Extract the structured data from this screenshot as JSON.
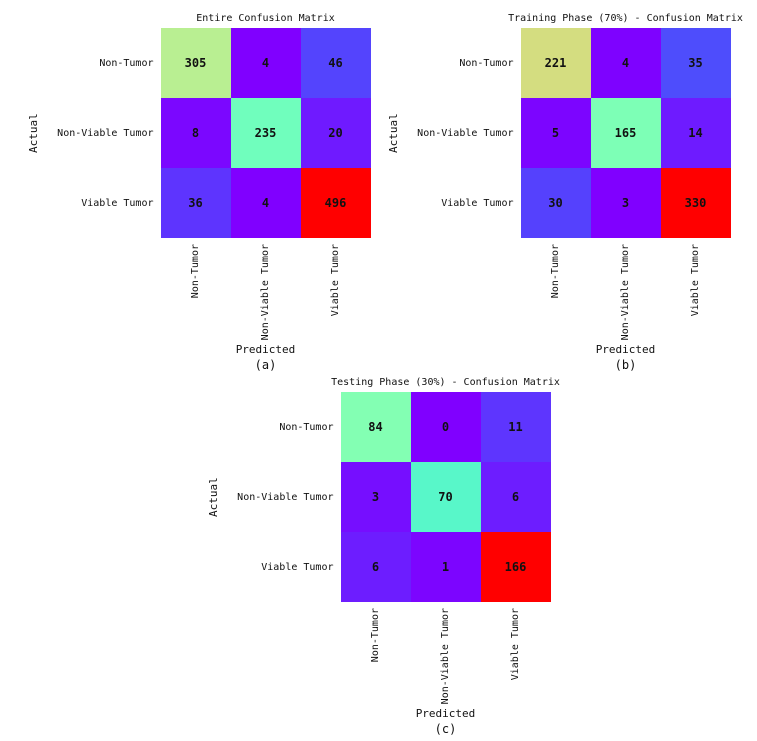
{
  "figure": {
    "background": "#ffffff",
    "text_color": "#111111"
  },
  "chart_data": [
    {
      "type": "heatmap",
      "title": "Entire Confusion Matrix",
      "panel_label": "(a)",
      "xlabel": "Predicted",
      "ylabel": "Actual",
      "categories": [
        "Non-Tumor",
        "Non-Viable Tumor",
        "Viable Tumor"
      ],
      "matrix": [
        [
          305,
          4,
          46
        ],
        [
          8,
          235,
          20
        ],
        [
          36,
          4,
          496
        ]
      ],
      "colormap": "rainbow",
      "vmin": 4,
      "vmax": 496
    },
    {
      "type": "heatmap",
      "title": "Training Phase (70%) - Confusion Matrix",
      "panel_label": "(b)",
      "xlabel": "Predicted",
      "ylabel": "Actual",
      "categories": [
        "Non-Tumor",
        "Non-Viable Tumor",
        "Viable Tumor"
      ],
      "matrix": [
        [
          221,
          4,
          35
        ],
        [
          5,
          165,
          14
        ],
        [
          30,
          3,
          330
        ]
      ],
      "colormap": "rainbow",
      "vmin": 3,
      "vmax": 330
    },
    {
      "type": "heatmap",
      "title": "Testing Phase (30%) - Confusion Matrix",
      "panel_label": "(c)",
      "xlabel": "Predicted",
      "ylabel": "Actual",
      "categories": [
        "Non-Tumor",
        "Non-Viable Tumor",
        "Viable Tumor"
      ],
      "matrix": [
        [
          84,
          0,
          11
        ],
        [
          3,
          70,
          6
        ],
        [
          6,
          1,
          166
        ]
      ],
      "colormap": "rainbow",
      "vmin": 0,
      "vmax": 166
    }
  ]
}
